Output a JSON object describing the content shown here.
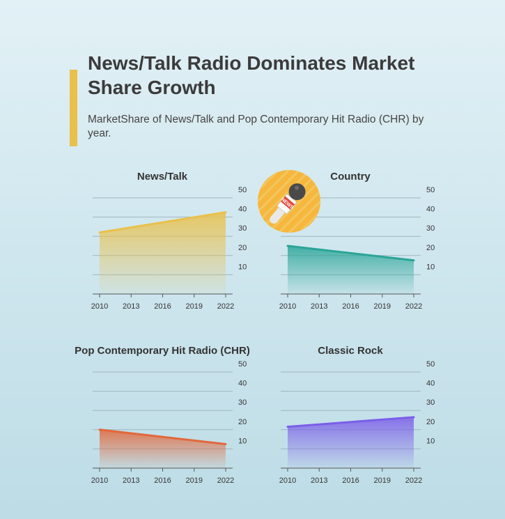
{
  "header": {
    "title": "News/Talk Radio Dominates Market Share Growth",
    "subtitle": "MarketShare of News/Talk and Pop Contemporary Hit Radio (CHR) by year.",
    "accent_color": "#e9c04a"
  },
  "badge": {
    "icon": "news-microphone-icon",
    "text": "NEWS",
    "color": "#f6b73c"
  },
  "chart_data": [
    {
      "type": "area",
      "title": "News/Talk",
      "color": "#e9c04a",
      "x": [
        2010,
        2022
      ],
      "values": [
        32,
        42.5
      ],
      "xticks": [
        "2010",
        "2013",
        "2016",
        "2019",
        "2022"
      ],
      "yticks": [
        "10",
        "20",
        "30",
        "40",
        "50"
      ],
      "ylim": [
        0,
        50
      ],
      "grid": true
    },
    {
      "type": "area",
      "title": "Country",
      "color": "#2aa597",
      "x": [
        2010,
        2022
      ],
      "values": [
        25,
        17.5
      ],
      "xticks": [
        "2010",
        "2013",
        "2016",
        "2019",
        "2022"
      ],
      "yticks": [
        "10",
        "20",
        "30",
        "40",
        "50"
      ],
      "ylim": [
        0,
        50
      ],
      "grid": true
    },
    {
      "type": "area",
      "title": "Pop Contemporary Hit Radio (CHR)",
      "color": "#e2683b",
      "x": [
        2010,
        2022
      ],
      "values": [
        20,
        12.5
      ],
      "xticks": [
        "2010",
        "2013",
        "2016",
        "2019",
        "2022"
      ],
      "yticks": [
        "10",
        "20",
        "30",
        "40",
        "50"
      ],
      "ylim": [
        0,
        50
      ],
      "grid": true
    },
    {
      "type": "area",
      "title": "Classic Rock",
      "color": "#7b5ee8",
      "x": [
        2010,
        2022
      ],
      "values": [
        21.5,
        26.5
      ],
      "xticks": [
        "2010",
        "2013",
        "2016",
        "2019",
        "2022"
      ],
      "yticks": [
        "10",
        "20",
        "30",
        "40",
        "50"
      ],
      "ylim": [
        0,
        50
      ],
      "grid": true
    }
  ]
}
